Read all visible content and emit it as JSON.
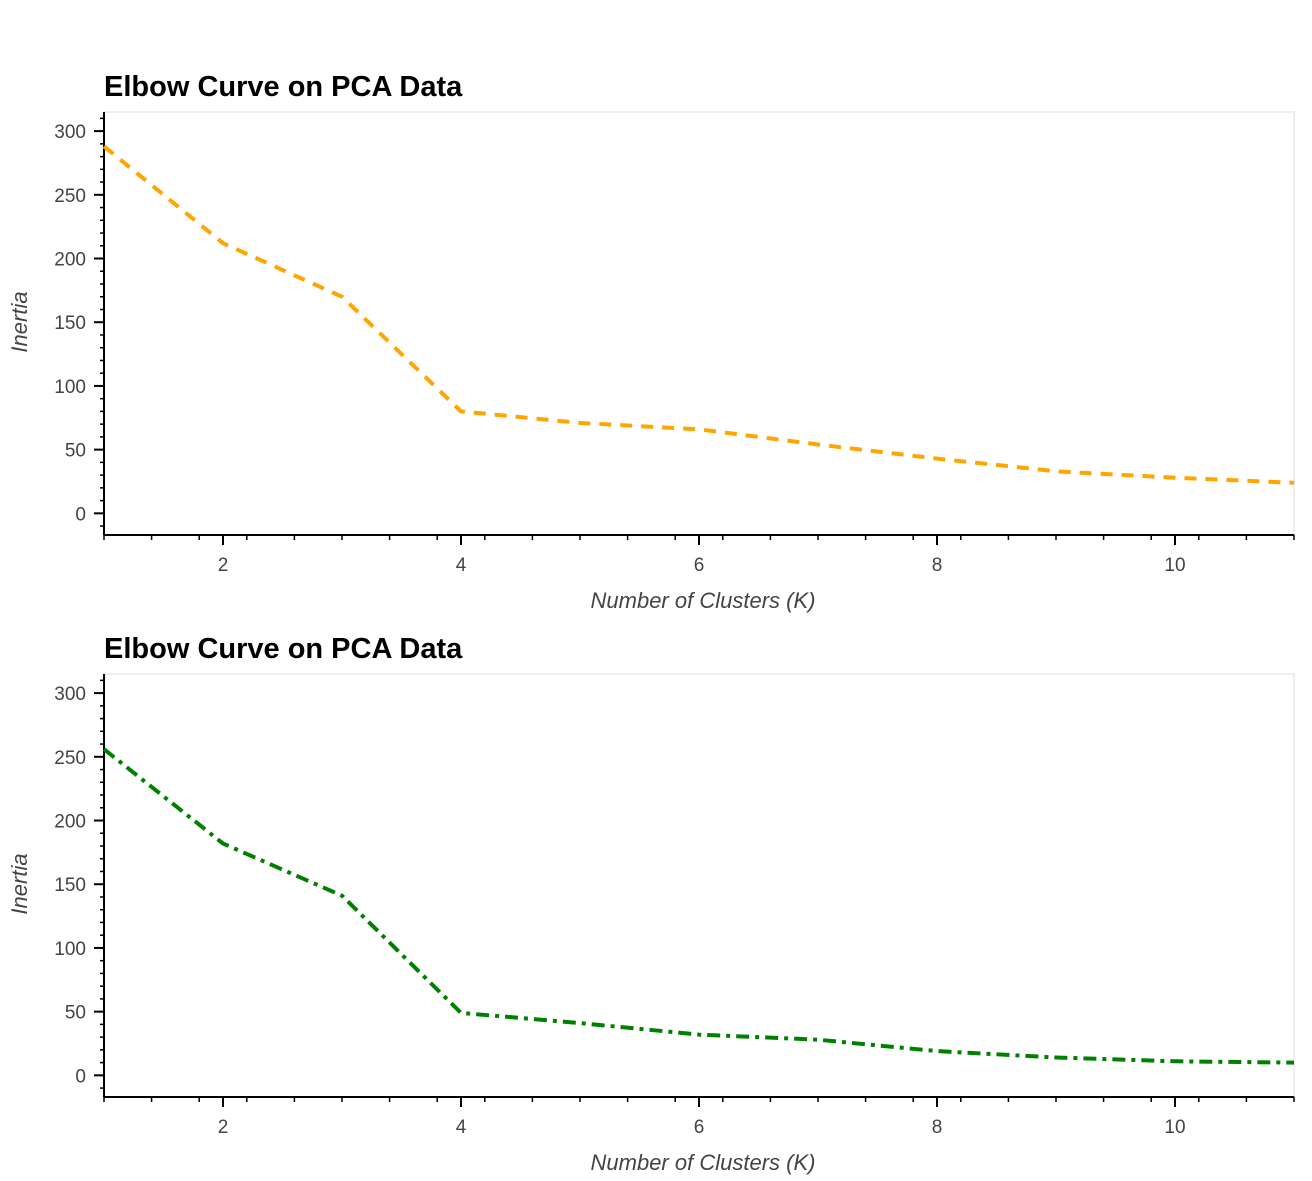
{
  "chart_data": [
    {
      "type": "line",
      "title": "Elbow Curve on PCA Data",
      "xlabel": "Number of Clusters (K)",
      "ylabel": "Inertia",
      "xlim": [
        1,
        11
      ],
      "ylim": [
        -17,
        315
      ],
      "x_ticks": [
        2,
        4,
        6,
        8,
        10
      ],
      "y_ticks": [
        0,
        50,
        100,
        150,
        200,
        250,
        300
      ],
      "grid": false,
      "line_color": "#ffa500",
      "line_style": "dashed",
      "series": [
        {
          "x": [
            1,
            2,
            3,
            4,
            5,
            6,
            7,
            8,
            9,
            10,
            11
          ],
          "values": [
            288,
            212,
            170,
            80,
            71,
            66,
            54,
            43,
            33,
            28,
            24
          ]
        }
      ]
    },
    {
      "type": "line",
      "title": "Elbow Curve on PCA Data",
      "xlabel": "Number of Clusters (K)",
      "ylabel": "Inertia",
      "xlim": [
        1,
        11
      ],
      "ylim": [
        -17,
        315
      ],
      "x_ticks": [
        2,
        4,
        6,
        8,
        10
      ],
      "y_ticks": [
        0,
        50,
        100,
        150,
        200,
        250,
        300
      ],
      "grid": false,
      "line_color": "#008000",
      "line_style": "dash-dot",
      "series": [
        {
          "x": [
            1,
            2,
            3,
            4,
            5,
            6,
            7,
            8,
            9,
            10,
            11
          ],
          "values": [
            256,
            182,
            141,
            49,
            41,
            32,
            28,
            19,
            14,
            11,
            10
          ]
        }
      ]
    }
  ]
}
